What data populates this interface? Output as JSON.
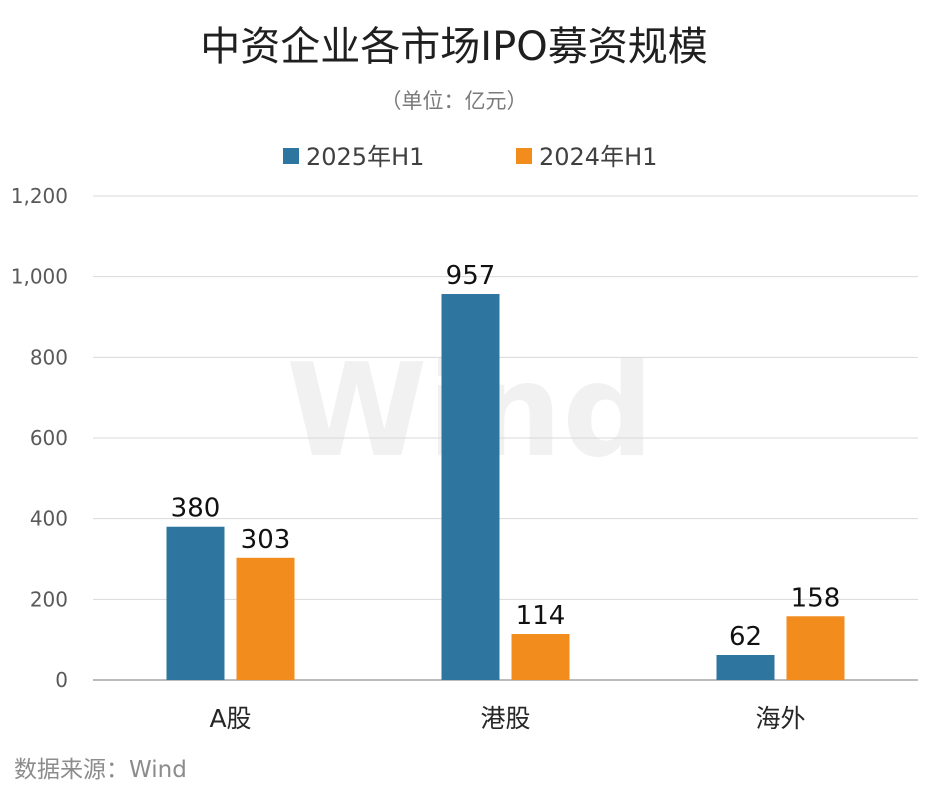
{
  "chart_data": {
    "type": "bar",
    "title": "中资企业各市场IPO募资规模",
    "subtitle": "（单位：亿元）",
    "categories": [
      "A股",
      "港股",
      "海外"
    ],
    "series": [
      {
        "name": "2025年H1",
        "values": [
          380,
          957,
          62
        ],
        "color": "#2e75a0"
      },
      {
        "name": "2024年H1",
        "values": [
          303,
          114,
          158
        ],
        "color": "#f28c1c"
      }
    ],
    "ylim": [
      0,
      1200
    ],
    "yticks": [
      0,
      200,
      400,
      600,
      800,
      1000,
      1200
    ],
    "ytick_labels": [
      "0",
      "200",
      "400",
      "600",
      "800",
      "1,000",
      "1,200"
    ],
    "grid": true,
    "legend": "top-center",
    "watermark": "Wind",
    "source": "数据来源：Wind"
  }
}
